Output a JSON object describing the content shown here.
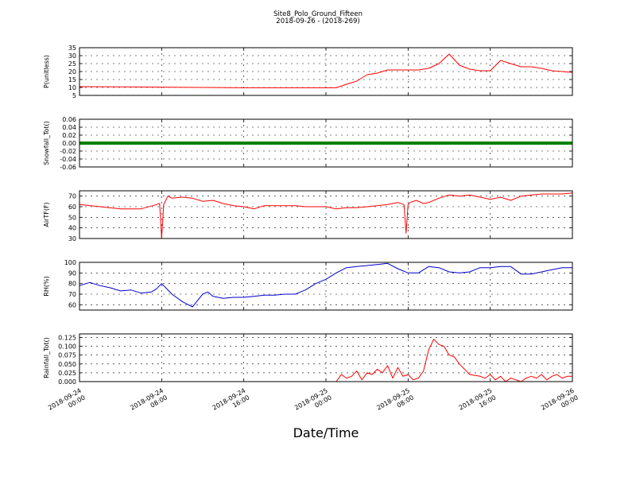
{
  "title": "Site8_Polo_Ground_Fifteen",
  "subtitle": "2018-09-26 - (2018-269)",
  "chart_data": {
    "type": "line",
    "xlabel": "Date/Time",
    "x_range": [
      "2018-09-24 00:00",
      "2018-09-26 00:00"
    ],
    "x_ticks": [
      {
        "value": "2018-09-24 00:00",
        "line1": "2018-09-24",
        "line2": "00:00"
      },
      {
        "value": "2018-09-24 08:00",
        "line1": "2018-09-24",
        "line2": "08:00"
      },
      {
        "value": "2018-09-24 16:00",
        "line1": "2018-09-24",
        "line2": "16:00"
      },
      {
        "value": "2018-09-25 00:00",
        "line1": "2018-09-25",
        "line2": "00:00"
      },
      {
        "value": "2018-09-25 08:00",
        "line1": "2018-09-25",
        "line2": "08:00"
      },
      {
        "value": "2018-09-25 16:00",
        "line1": "2018-09-25",
        "line2": "16:00"
      },
      {
        "value": "2018-09-26 00:00",
        "line1": "2018-09-26",
        "line2": "00:00"
      }
    ],
    "grid": true,
    "panels": [
      {
        "ylabel": "P(unitless)",
        "ylim": [
          5,
          35
        ],
        "yticks": [
          5,
          10,
          15,
          20,
          25,
          30,
          35
        ],
        "tick_decimals": 0,
        "color": "#ff0000",
        "x_hours": [
          0,
          4,
          8,
          12,
          16,
          20,
          24,
          25,
          26,
          27,
          28,
          29,
          30,
          31,
          32,
          33,
          34,
          35,
          36,
          37,
          38,
          39,
          40,
          41,
          42,
          43,
          44,
          45,
          46,
          47,
          48
        ],
        "values": [
          10.5,
          10.4,
          10.2,
          10,
          9.8,
          9.8,
          9.8,
          9.8,
          12,
          14,
          18,
          19,
          21,
          21,
          21,
          21,
          22,
          25,
          31,
          24,
          21.5,
          20.5,
          20.5,
          27,
          25,
          23,
          23,
          22,
          20.5,
          20,
          19.5
        ]
      },
      {
        "ylabel": "Snowfall_Tot()",
        "ylim": [
          -0.06,
          0.06
        ],
        "yticks": [
          -0.06,
          -0.04,
          -0.02,
          0.0,
          0.02,
          0.04,
          0.06
        ],
        "tick_decimals": 2,
        "color": "#008000",
        "thick": true,
        "x_hours": [
          0,
          48
        ],
        "values": [
          0,
          0
        ]
      },
      {
        "ylabel": "AirTF(F)",
        "ylim": [
          30,
          75
        ],
        "yticks": [
          30,
          40,
          50,
          60,
          70
        ],
        "tick_decimals": 0,
        "color": "#ff0000",
        "x_hours": [
          0,
          2,
          4,
          6,
          7.5,
          7.8,
          8.0,
          8.2,
          8.6,
          9,
          10,
          11,
          12,
          13,
          14,
          15,
          16,
          17,
          18,
          19,
          20,
          21,
          22,
          24,
          25,
          26,
          27,
          28,
          29,
          30,
          31,
          31.6,
          31.8,
          32.0,
          32.2,
          32.8,
          33.5,
          34,
          35,
          36,
          37,
          38,
          39,
          40,
          41,
          42,
          43,
          44,
          45,
          46,
          47,
          48
        ],
        "values": [
          62,
          60,
          58,
          58,
          62,
          63,
          30,
          62,
          70,
          68,
          69,
          68,
          65,
          66,
          63,
          61,
          60,
          58,
          61,
          61,
          61,
          61,
          60,
          60,
          58,
          59,
          59,
          60,
          61,
          62,
          64,
          62,
          35,
          62,
          64,
          66,
          63,
          64,
          68,
          71,
          70,
          71,
          69,
          67,
          69,
          66,
          70,
          71,
          72,
          72,
          72,
          73
        ]
      },
      {
        "ylabel": "RH(%)",
        "ylim": [
          55,
          100
        ],
        "yticks": [
          60,
          70,
          80,
          90,
          100
        ],
        "tick_decimals": 0,
        "color": "#0000cc",
        "x_hours": [
          0,
          1,
          2,
          3,
          4,
          5,
          6,
          7,
          7.5,
          8,
          9,
          10,
          11,
          12,
          12.5,
          13,
          14,
          15,
          16,
          17,
          18,
          19,
          20,
          21,
          22,
          23,
          24,
          25,
          26,
          27,
          28,
          29,
          30,
          31,
          32,
          33,
          34,
          35,
          36,
          37,
          38,
          39,
          40,
          41,
          42,
          43,
          44,
          45,
          46,
          47,
          48
        ],
        "values": [
          78,
          81,
          78,
          76,
          73,
          74,
          71,
          72,
          75,
          80,
          70,
          63,
          58,
          70,
          72,
          68,
          66,
          67,
          67,
          68,
          69,
          69,
          70,
          70,
          74,
          80,
          84,
          90,
          95,
          96,
          97,
          98,
          99,
          94,
          90,
          90,
          96,
          95,
          91,
          90,
          91,
          95,
          95,
          96,
          96,
          89,
          89,
          91,
          93,
          95,
          95
        ]
      },
      {
        "ylabel": "Rainfall_Tot()",
        "ylim": [
          0,
          0.135
        ],
        "yticks": [
          0.0,
          0.025,
          0.05,
          0.075,
          0.1,
          0.125
        ],
        "tick_decimals": 3,
        "color": "#ff0000",
        "x_hours": [
          0,
          25,
          25.5,
          26,
          26.5,
          27,
          27.5,
          28,
          28.5,
          29,
          29.5,
          30,
          30.5,
          31,
          31.5,
          32,
          32.5,
          33,
          33.5,
          34,
          34.5,
          35,
          35.5,
          36,
          36.5,
          37,
          38,
          39,
          39.5,
          40,
          40.5,
          41,
          41.5,
          42,
          42.5,
          43,
          43.5,
          44,
          44.5,
          45,
          45.5,
          46,
          46.5,
          47,
          47.5,
          48
        ],
        "values": [
          0,
          0,
          0.02,
          0.01,
          0.015,
          0.03,
          0.005,
          0.025,
          0.02,
          0.035,
          0.025,
          0.045,
          0.01,
          0.04,
          0.015,
          0.02,
          0.005,
          0.01,
          0.03,
          0.09,
          0.12,
          0.105,
          0.1,
          0.075,
          0.07,
          0.05,
          0.02,
          0.015,
          0.01,
          0.02,
          0.005,
          0.015,
          0.0,
          0.01,
          0.005,
          0.0,
          0.01,
          0.015,
          0.01,
          0.02,
          0.005,
          0.015,
          0.02,
          0.01,
          0.015,
          0.015
        ]
      }
    ]
  }
}
